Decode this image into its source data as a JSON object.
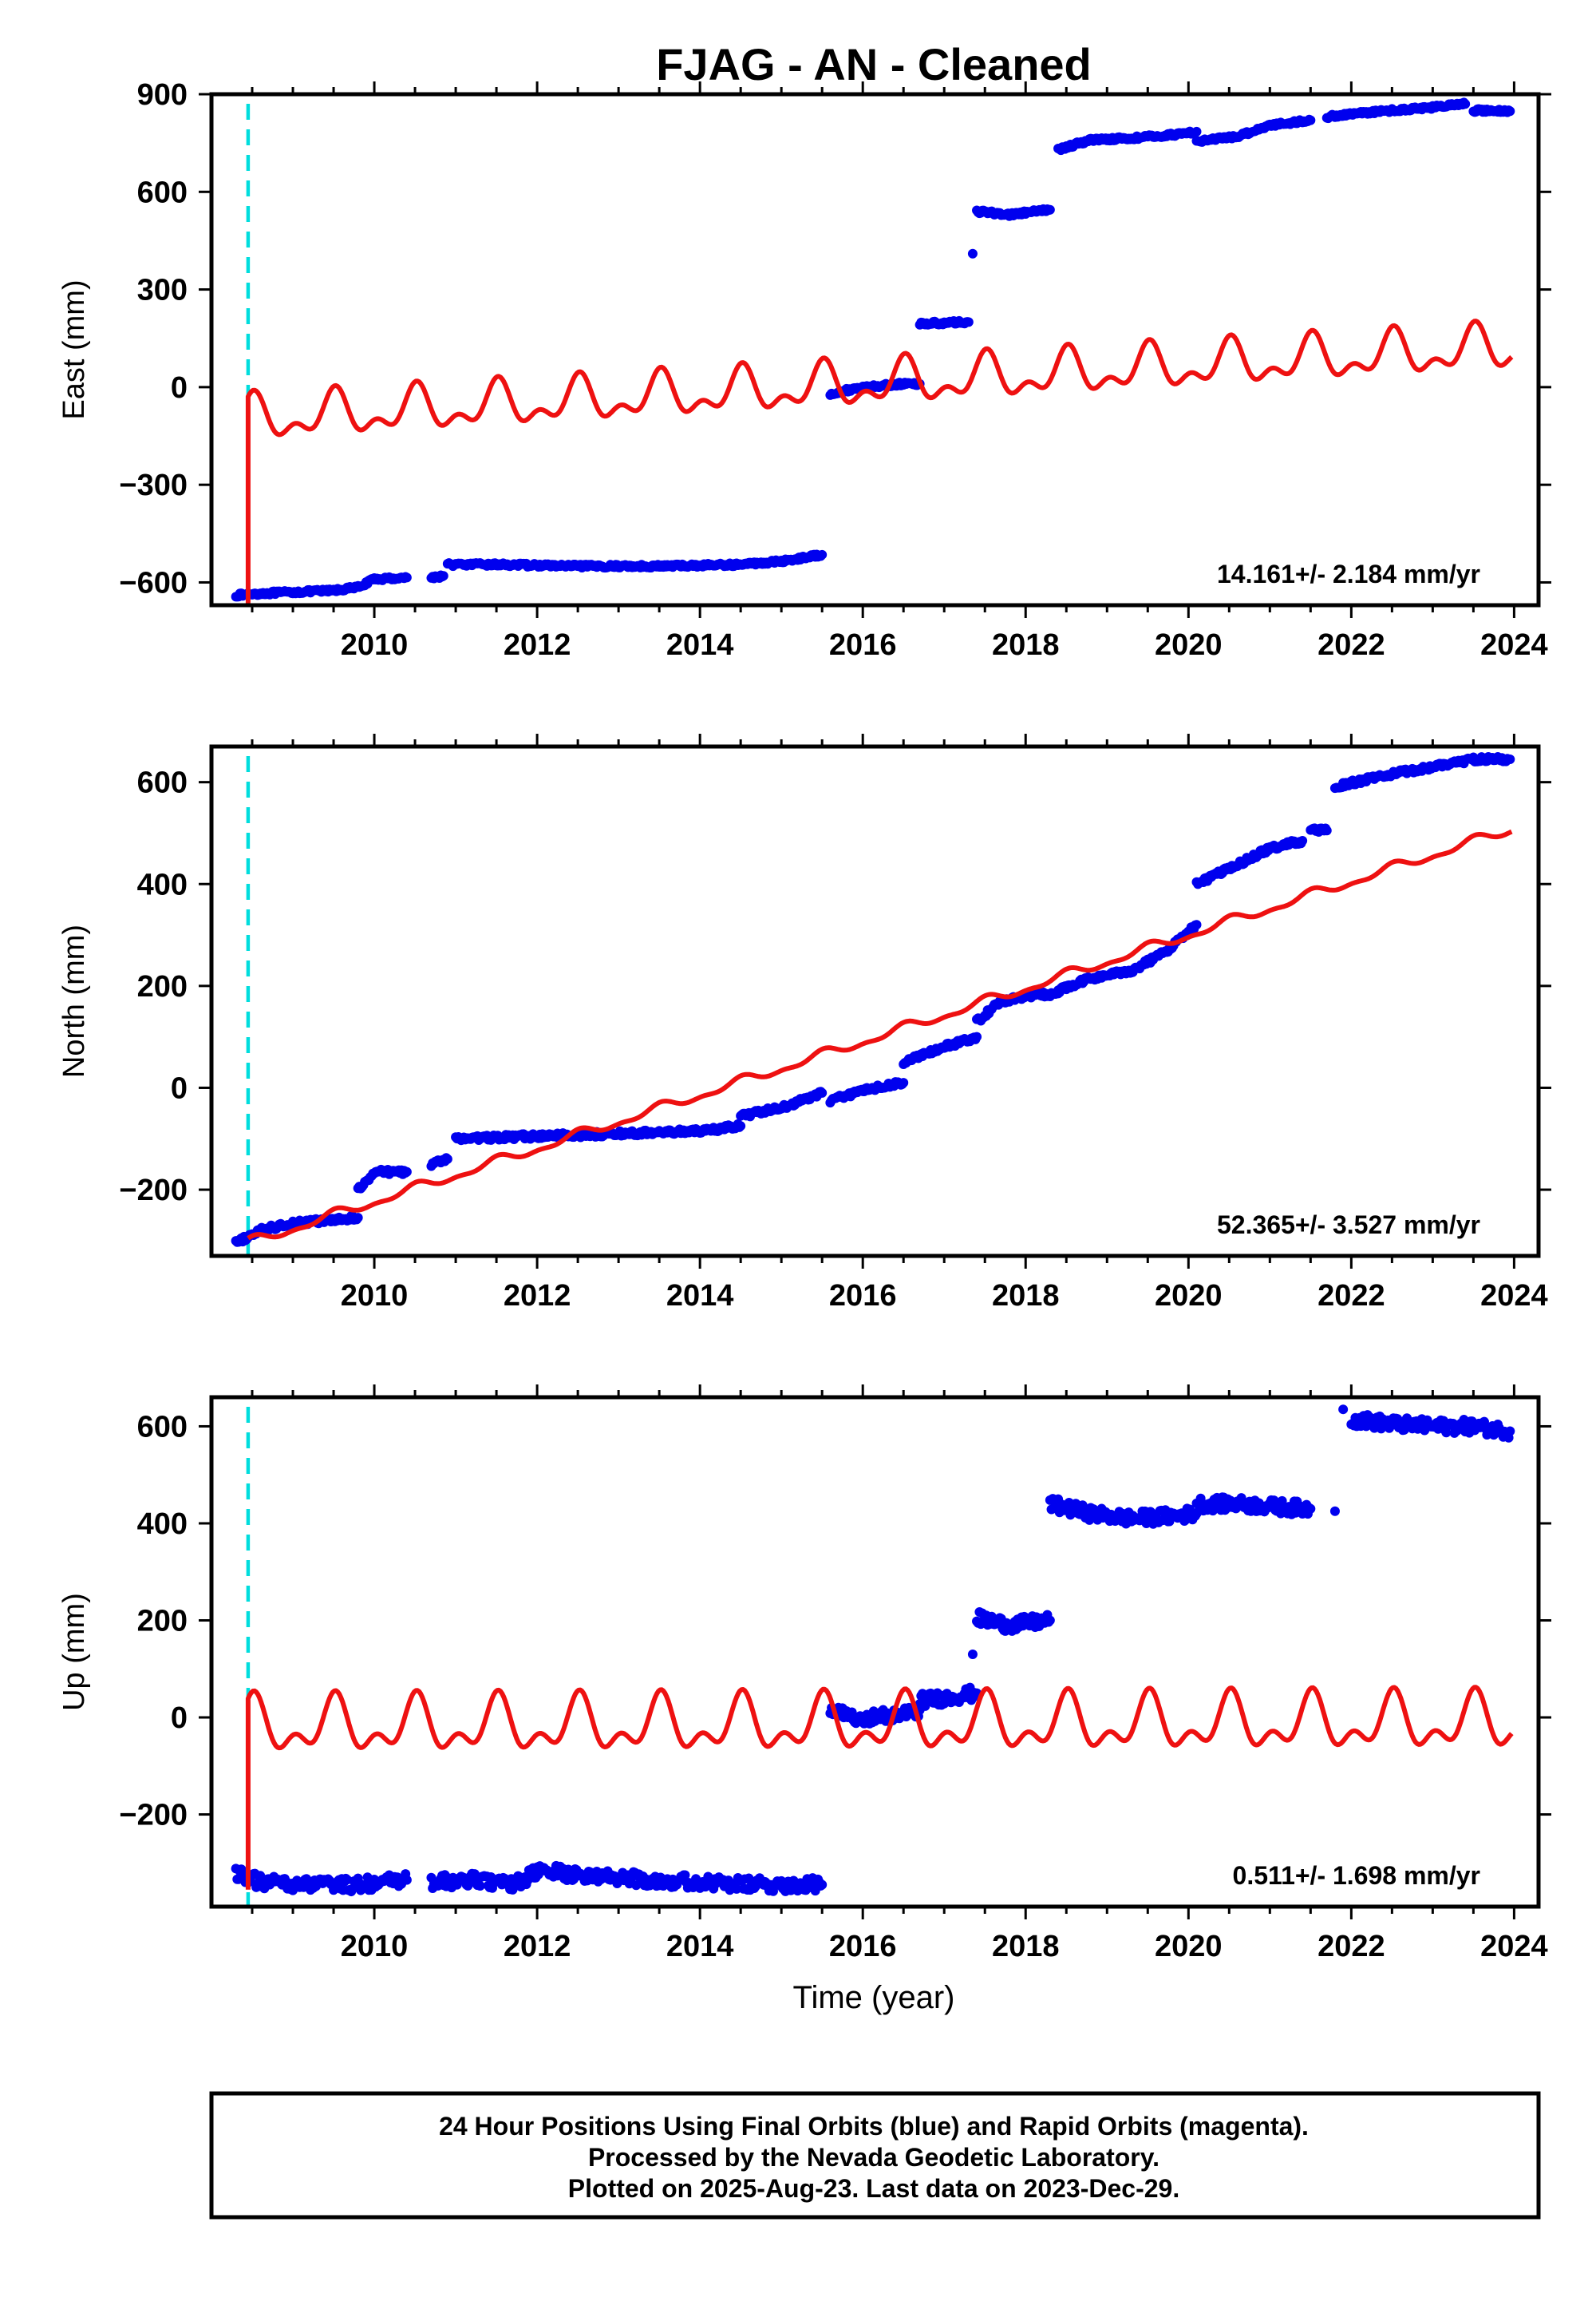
{
  "title": "FJAG  - AN - Cleaned",
  "xlabel": "Time (year)",
  "xticks": [
    "2010",
    "2012",
    "2014",
    "2016",
    "2018",
    "2020",
    "2022",
    "2024"
  ],
  "footer": {
    "line1": "24 Hour Positions Using Final Orbits (blue) and Rapid Orbits (magenta).",
    "line2": "Processed by the Nevada Geodetic Laboratory.",
    "line3": "Plotted on 2025-Aug-23. Last data on 2023-Dec-29."
  },
  "colors": {
    "data": "#0000ee",
    "model": "#ee1111",
    "event": "#00dddd",
    "axis": "#000000"
  },
  "chart_data": [
    {
      "type": "scatter",
      "component": "east",
      "ylabel": "East (mm)",
      "ylim": [
        -670,
        900
      ],
      "xlim": [
        2008.0,
        2024.3
      ],
      "yticks": [
        "900",
        "600",
        "300",
        "0",
        "−300",
        "−600"
      ],
      "ytick_values": [
        900,
        600,
        300,
        0,
        -300,
        -600
      ],
      "rate_text": "14.161+/- 2.184 mm/yr",
      "event_line_year": 2008.45,
      "data_segments": [
        {
          "x": [
            2008.3,
            2008.5,
            2009.0,
            2009.5,
            2009.8,
            2010.0
          ],
          "y": [
            -640,
            -635,
            -630,
            -625,
            -615,
            -590
          ]
        },
        {
          "x": [
            2010.0,
            2010.4
          ],
          "y": [
            -590,
            -585
          ]
        },
        {
          "x": [
            2010.7,
            2010.85
          ],
          "y": [
            -585,
            -580
          ]
        },
        {
          "x": [
            2010.9,
            2011.5,
            2012.5,
            2013.5,
            2014.5,
            2015.0,
            2015.5
          ],
          "y": [
            -545,
            -545,
            -550,
            -550,
            -545,
            -535,
            -515
          ]
        },
        {
          "x": [
            2015.6,
            2016.0,
            2016.5,
            2016.7
          ],
          "y": [
            -20,
            0,
            10,
            10
          ]
        },
        {
          "x": [
            2016.7,
            2017.3
          ],
          "y": [
            195,
            200
          ]
        },
        {
          "x": [
            2017.35
          ],
          "y": [
            410
          ]
        },
        {
          "x": [
            2017.4,
            2017.8,
            2018.3
          ],
          "y": [
            540,
            530,
            545
          ]
        },
        {
          "x": [
            2018.4,
            2018.8,
            2019.3,
            2019.8,
            2020.1
          ],
          "y": [
            730,
            760,
            765,
            775,
            785
          ]
        },
        {
          "x": [
            2020.1,
            2020.6,
            2021.0,
            2021.5
          ],
          "y": [
            755,
            770,
            805,
            820
          ]
        },
        {
          "x": [
            2021.7,
            2022.0,
            2022.5,
            2023.0,
            2023.4
          ],
          "y": [
            830,
            840,
            850,
            860,
            870
          ]
        },
        {
          "x": [
            2023.5,
            2023.95
          ],
          "y": [
            850,
            848
          ]
        }
      ],
      "model": {
        "offset_jump": [
          2008.45,
          -665,
          -40
        ],
        "trend_start": -100,
        "rate": 14.161,
        "annual_amp": 55,
        "semiannual_amp": 35
      }
    },
    {
      "type": "scatter",
      "component": "north",
      "ylabel": "North (mm)",
      "ylim": [
        -330,
        670
      ],
      "xlim": [
        2008.0,
        2024.3
      ],
      "yticks": [
        "600",
        "400",
        "200",
        "0",
        "−200"
      ],
      "ytick_values": [
        600,
        400,
        200,
        0,
        -200
      ],
      "rate_text": "52.365+/- 3.527 mm/yr",
      "event_line_year": 2008.45,
      "data_segments": [
        {
          "x": [
            2008.3,
            2008.6,
            2009.0,
            2009.5,
            2009.8
          ],
          "y": [
            -305,
            -280,
            -265,
            -260,
            -255
          ]
        },
        {
          "x": [
            2009.8,
            2010.0,
            2010.4
          ],
          "y": [
            -200,
            -165,
            -165
          ]
        },
        {
          "x": [
            2010.7,
            2010.9
          ],
          "y": [
            -150,
            -140
          ]
        },
        {
          "x": [
            2011.0,
            2012.0,
            2013.0,
            2014.0,
            2014.5
          ],
          "y": [
            -100,
            -95,
            -90,
            -85,
            -75
          ]
        },
        {
          "x": [
            2014.5,
            2015.0,
            2015.5
          ],
          "y": [
            -55,
            -40,
            -10
          ]
        },
        {
          "x": [
            2015.6,
            2016.0,
            2016.5
          ],
          "y": [
            -25,
            -5,
            10
          ]
        },
        {
          "x": [
            2016.5,
            2017.0,
            2017.4
          ],
          "y": [
            50,
            80,
            100
          ]
        },
        {
          "x": [
            2017.4,
            2017.7,
            2018.0,
            2018.4
          ],
          "y": [
            130,
            170,
            180,
            185
          ]
        },
        {
          "x": [
            2018.4,
            2018.8,
            2019.3,
            2019.7,
            2020.1
          ],
          "y": [
            190,
            215,
            230,
            265,
            320
          ]
        },
        {
          "x": [
            2020.1,
            2020.5,
            2021.0,
            2021.4
          ],
          "y": [
            400,
            430,
            470,
            485
          ]
        },
        {
          "x": [
            2021.5,
            2021.7
          ],
          "y": [
            505,
            505
          ]
        },
        {
          "x": [
            2021.8,
            2022.3,
            2023.0,
            2023.5,
            2023.95
          ],
          "y": [
            590,
            610,
            630,
            645,
            645
          ]
        }
      ],
      "model": {
        "offset_jump": null,
        "trend_start": -305,
        "rate": 52.365,
        "annual_amp": 8,
        "semiannual_amp": 4
      }
    },
    {
      "type": "scatter",
      "component": "up",
      "ylabel": "Up (mm)",
      "ylim": [
        -390,
        660
      ],
      "xlim": [
        2008.0,
        2024.3
      ],
      "yticks": [
        "600",
        "400",
        "200",
        "0",
        "−200"
      ],
      "ytick_values": [
        600,
        400,
        200,
        0,
        -200
      ],
      "rate_text": "0.511+/- 1.698 mm/yr",
      "event_line_year": 2008.45,
      "data_segments": [
        {
          "x": [
            2008.3,
            2008.6,
            2009.2,
            2009.8,
            2010.4
          ],
          "y": [
            -320,
            -340,
            -345,
            -345,
            -335
          ]
        },
        {
          "x": [
            2010.7,
            2011.2,
            2011.7,
            2012.0
          ],
          "y": [
            -340,
            -335,
            -345,
            -320
          ]
        },
        {
          "x": [
            2012.0,
            2012.5,
            2013.0,
            2013.5,
            2014.0,
            2014.5,
            2015.0,
            2015.5
          ],
          "y": [
            -315,
            -325,
            -330,
            -335,
            -340,
            -345,
            -345,
            -345
          ]
        },
        {
          "x": [
            2015.6,
            2016.0,
            2016.5,
            2016.7
          ],
          "y": [
            10,
            0,
            5,
            15
          ]
        },
        {
          "x": [
            2016.7,
            2017.0,
            2017.4
          ],
          "y": [
            35,
            40,
            50
          ]
        },
        {
          "x": [
            2017.35
          ],
          "y": [
            130
          ]
        },
        {
          "x": [
            2017.4,
            2017.8,
            2018.3
          ],
          "y": [
            205,
            190,
            200
          ]
        },
        {
          "x": [
            2018.3,
            2018.8,
            2019.3,
            2019.8,
            2020.1
          ],
          "y": [
            440,
            420,
            410,
            415,
            420
          ]
        },
        {
          "x": [
            2020.1,
            2020.6,
            2021.0,
            2021.5
          ],
          "y": [
            440,
            440,
            435,
            430
          ]
        },
        {
          "x": [
            2021.8
          ],
          "y": [
            425
          ]
        },
        {
          "x": [
            2021.9
          ],
          "y": [
            635
          ]
        },
        {
          "x": [
            2022.0,
            2022.5,
            2023.0,
            2023.5,
            2023.95
          ],
          "y": [
            615,
            605,
            600,
            600,
            590
          ]
        }
      ],
      "model": {
        "offset_jump": [
          2008.45,
          -355,
          15
        ],
        "trend_start": -20,
        "rate": 0.511,
        "annual_amp": 45,
        "semiannual_amp": 30
      }
    }
  ]
}
